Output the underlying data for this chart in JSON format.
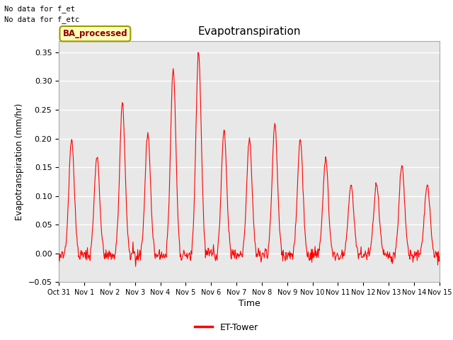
{
  "title": "Evapotranspiration",
  "ylabel": "Evapotranspiration (mm/hr)",
  "xlabel": "Time",
  "text_upper_left_line1": "No data for f_et",
  "text_upper_left_line2": "No data for f_etc",
  "legend_box_label": "BA_processed",
  "legend_line_label": "ET-Tower",
  "ylim": [
    -0.05,
    0.37
  ],
  "yticks": [
    -0.05,
    0.0,
    0.05,
    0.1,
    0.15,
    0.2,
    0.25,
    0.3,
    0.35
  ],
  "axes_bg_color": "#e8e8e8",
  "fig_bg_color": "#ffffff",
  "line_color": "#ff0000",
  "grid_color": "#ffffff",
  "num_days": 15,
  "xtick_labels": [
    "Oct 31",
    "Nov 1",
    "Nov 2",
    "Nov 3",
    "Nov 4",
    "Nov 5",
    "Nov 6",
    "Nov 7",
    "Nov 8",
    "Nov 9",
    "Nov 10",
    "Nov 11",
    "Nov 12",
    "Nov 13",
    "Nov 14",
    "Nov 15"
  ],
  "day_peaks": [
    0.2,
    0.17,
    0.26,
    0.21,
    0.32,
    0.35,
    0.215,
    0.2,
    0.225,
    0.2,
    0.165,
    0.12,
    0.12,
    0.155,
    0.12
  ],
  "points_per_day": 48
}
